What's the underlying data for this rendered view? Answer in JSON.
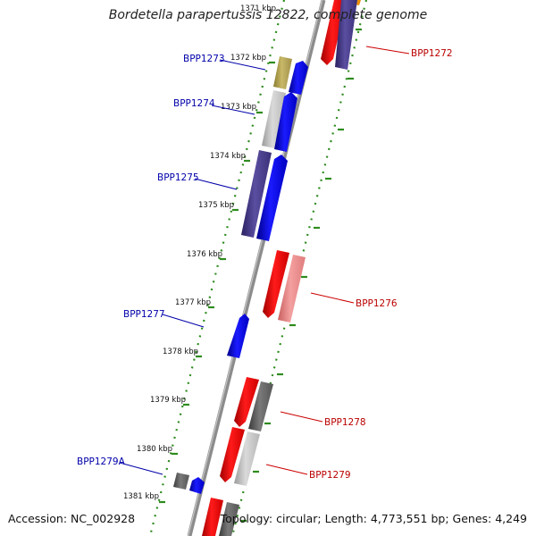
{
  "title": "Bordetella parapertussis 12822, complete genome",
  "accession": "Accession: NC_002928",
  "summary": "Topology: circular; Length: 4,773,551 bp; Genes: 4,249",
  "colors": {
    "backbone": "#8c8c8c",
    "tick": "#2e8b1e",
    "label_left": "#0000aa",
    "label_right": "#bb0000"
  },
  "kbp_labels": [
    "1371 kbp",
    "1372 kbp",
    "1373 kbp",
    "1374 kbp",
    "1375 kbp",
    "1376 kbp",
    "1377 kbp",
    "1378 kbp",
    "1379 kbp",
    "1380 kbp",
    "1381 kbp"
  ],
  "gene_labels_left": [
    "BPP1273",
    "BPP1274",
    "BPP1275",
    "BPP1277",
    "BPP1279A"
  ],
  "gene_labels_right": [
    "BPP1272",
    "BPP1276",
    "BPP1278",
    "BPP1279"
  ]
}
